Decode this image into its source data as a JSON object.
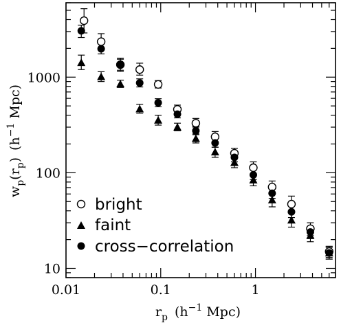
{
  "chart_data": {
    "type": "scatter",
    "xlabel": {
      "base": "r",
      "sub": "p",
      "unit": "(h",
      "sup": "−1",
      "unit_end": " Mpc)"
    },
    "ylabel": {
      "base": "w",
      "sub": "p",
      "open": "(r",
      "inner_sub": "p",
      "close": ")",
      "unit": "(h",
      "sup": "−1",
      "unit_end": " Mpc)"
    },
    "xscale": "log",
    "yscale": "log",
    "xlim": [
      0.01,
      7
    ],
    "ylim": [
      8,
      6000
    ],
    "grid": false,
    "legend_placement": "bottom-left",
    "x_ticks": [
      {
        "value": 0.01,
        "label": "0.01"
      },
      {
        "value": 0.1,
        "label": "0.1"
      },
      {
        "value": 1,
        "label": "1"
      }
    ],
    "y_ticks": [
      {
        "value": 10,
        "label": "10"
      },
      {
        "value": 100,
        "label": "100"
      },
      {
        "value": 1000,
        "label": "1000"
      }
    ],
    "series": [
      {
        "name": "bright",
        "marker": "open-circle",
        "points": [
          {
            "x": 0.0155,
            "y": 3900,
            "lo": 2900,
            "hi": 5200
          },
          {
            "x": 0.0235,
            "y": 2350,
            "lo": 1950,
            "hi": 2850
          },
          {
            "x": 0.0375,
            "y": 1350,
            "lo": 1150,
            "hi": 1580
          },
          {
            "x": 0.06,
            "y": 1200,
            "lo": 1050,
            "hi": 1400
          },
          {
            "x": 0.094,
            "y": 840,
            "lo": 770,
            "hi": 920
          },
          {
            "x": 0.15,
            "y": 460,
            "lo": 410,
            "hi": 510
          },
          {
            "x": 0.235,
            "y": 330,
            "lo": 300,
            "hi": 370
          },
          {
            "x": 0.375,
            "y": 238,
            "lo": 210,
            "hi": 270
          },
          {
            "x": 0.6,
            "y": 160,
            "lo": 140,
            "hi": 180
          },
          {
            "x": 0.95,
            "y": 113,
            "lo": 98,
            "hi": 130
          },
          {
            "x": 1.5,
            "y": 71,
            "lo": 61,
            "hi": 82
          },
          {
            "x": 2.4,
            "y": 47,
            "lo": 38,
            "hi": 57
          },
          {
            "x": 3.8,
            "y": 26,
            "lo": 22,
            "hi": 30
          },
          {
            "x": 6.0,
            "y": 15,
            "lo": 13,
            "hi": 17
          }
        ]
      },
      {
        "name": "faint",
        "marker": "filled-triangle",
        "points": [
          {
            "x": 0.0145,
            "y": 1420,
            "lo": 1200,
            "hi": 1700
          },
          {
            "x": 0.0235,
            "y": 1010,
            "lo": 900,
            "hi": 1140
          },
          {
            "x": 0.0375,
            "y": 850,
            "lo": 780,
            "hi": 930
          },
          {
            "x": 0.06,
            "y": 465,
            "lo": 420,
            "hi": 520
          },
          {
            "x": 0.094,
            "y": 355,
            "lo": 315,
            "hi": 400
          },
          {
            "x": 0.15,
            "y": 300,
            "lo": 275,
            "hi": 330
          },
          {
            "x": 0.235,
            "y": 228,
            "lo": 205,
            "hi": 255
          },
          {
            "x": 0.375,
            "y": 165,
            "lo": 145,
            "hi": 185
          },
          {
            "x": 0.6,
            "y": 128,
            "lo": 113,
            "hi": 145
          },
          {
            "x": 0.95,
            "y": 84,
            "lo": 73,
            "hi": 97
          },
          {
            "x": 1.5,
            "y": 52,
            "lo": 44,
            "hi": 61
          },
          {
            "x": 2.4,
            "y": 32,
            "lo": 27,
            "hi": 38
          },
          {
            "x": 3.8,
            "y": 22,
            "lo": 19,
            "hi": 26
          },
          {
            "x": 6.0,
            "y": 14.5,
            "lo": 12.5,
            "hi": 17
          }
        ]
      },
      {
        "name": "cross-correlation",
        "marker": "filled-circle",
        "points": [
          {
            "x": 0.0145,
            "y": 3050,
            "lo": 2600,
            "hi": 3500
          },
          {
            "x": 0.0235,
            "y": 1980,
            "lo": 1750,
            "hi": 2230
          },
          {
            "x": 0.0375,
            "y": 1350,
            "lo": 1180,
            "hi": 1540
          },
          {
            "x": 0.06,
            "y": 870,
            "lo": 790,
            "hi": 960
          },
          {
            "x": 0.094,
            "y": 540,
            "lo": 490,
            "hi": 595
          },
          {
            "x": 0.15,
            "y": 410,
            "lo": 375,
            "hi": 450
          },
          {
            "x": 0.235,
            "y": 275,
            "lo": 250,
            "hi": 305
          },
          {
            "x": 0.375,
            "y": 205,
            "lo": 185,
            "hi": 228
          },
          {
            "x": 0.6,
            "y": 145,
            "lo": 130,
            "hi": 162
          },
          {
            "x": 0.95,
            "y": 95,
            "lo": 85,
            "hi": 107
          },
          {
            "x": 1.5,
            "y": 61,
            "lo": 54,
            "hi": 69
          },
          {
            "x": 2.4,
            "y": 39,
            "lo": 34,
            "hi": 45
          },
          {
            "x": 3.8,
            "y": 24,
            "lo": 21,
            "hi": 27
          },
          {
            "x": 6.0,
            "y": 14.5,
            "lo": 12.5,
            "hi": 16.5
          }
        ]
      }
    ],
    "legend": [
      {
        "marker": "open-circle",
        "label": "bright"
      },
      {
        "marker": "filled-triangle",
        "label": "faint"
      },
      {
        "marker": "filled-circle",
        "label": "cross−correlation"
      }
    ]
  }
}
